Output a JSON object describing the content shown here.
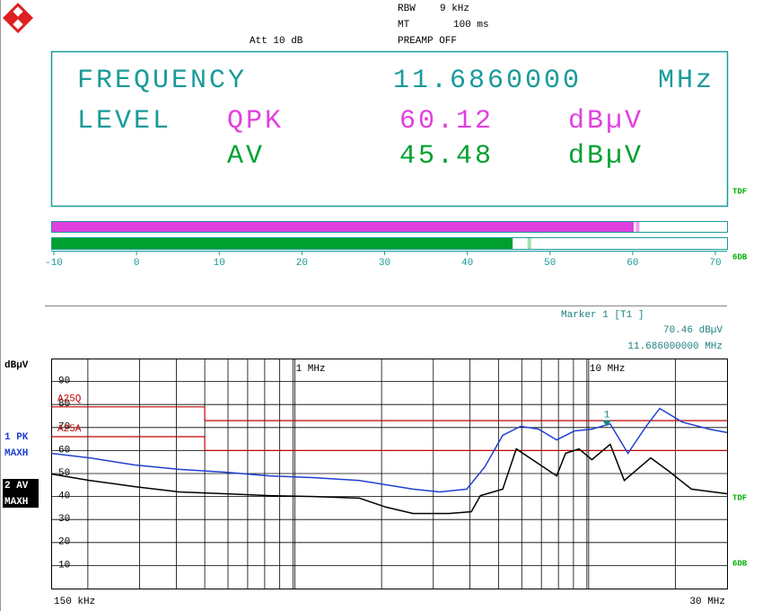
{
  "header": {
    "rbw_label": "RBW",
    "rbw": "9 kHz",
    "mt_label": "MT",
    "mt": "100 ms",
    "preamp": "PREAMP OFF",
    "att": "Att 10 dB"
  },
  "display": {
    "frequency_label": "FREQUENCY",
    "frequency": "11.6860000",
    "frequency_unit": "MHz",
    "level_label": "LEVEL",
    "qpk_label": "QPK",
    "qpk_value": "60.12",
    "qpk_unit": "dBµV",
    "av_label": "AV",
    "av_value": "45.48",
    "av_unit": "dBµV",
    "tdf": "TDF",
    "db": "6DB"
  },
  "bargraph": {
    "xlim": [
      -10,
      70
    ],
    "ticks": [
      -10,
      0,
      10,
      20,
      30,
      40,
      50,
      60,
      70
    ],
    "qpk": {
      "value": 60.12,
      "hold": 60.6,
      "color": "#e040e0"
    },
    "av": {
      "value": 45.48,
      "hold": 47.5,
      "color": "#00a030"
    }
  },
  "chart_data": {
    "type": "line",
    "log_x": true,
    "grid": true,
    "y_label": "dBµV",
    "xlim": [
      0.15,
      30
    ],
    "xlim_labels": [
      "150 kHz",
      "30 MHz"
    ],
    "xticks": [
      0.2,
      0.3,
      0.4,
      0.5,
      0.6,
      0.7,
      0.8,
      0.9,
      1,
      2,
      3,
      4,
      5,
      6,
      7,
      8,
      9,
      10,
      20
    ],
    "xtick_labels": [
      {
        "value": 1,
        "label": "1 MHz"
      },
      {
        "value": 10,
        "label": "10 MHz"
      }
    ],
    "ylim": [
      0,
      100
    ],
    "yticks": [
      10,
      20,
      30,
      40,
      50,
      60,
      70,
      80,
      90
    ],
    "series": [
      {
        "name": "1 PK",
        "mode": "MAXH",
        "color": "#2040d0",
        "x": [
          0.15,
          0.203,
          0.289,
          0.41,
          0.584,
          0.83,
          1.18,
          1.68,
          2.07,
          2.56,
          3.16,
          3.9,
          4.49,
          5.17,
          5.95,
          6.85,
          7.89,
          9.07,
          10.4,
          12.0,
          13.8,
          15.9,
          17.7,
          21.1,
          26.1,
          30
        ],
        "values": [
          58.8,
          56.8,
          53.7,
          51.8,
          50.6,
          49,
          48.2,
          47,
          45.1,
          43.2,
          42,
          43.2,
          52.9,
          66.6,
          70.5,
          69.3,
          64.6,
          68.5,
          69.3,
          71.6,
          58.8,
          70.5,
          78.3,
          72.4,
          69.3,
          67.8
        ]
      },
      {
        "name": "2 AV",
        "mode": "MAXH",
        "color": "#000000",
        "x": [
          0.15,
          0.203,
          0.289,
          0.41,
          0.584,
          0.83,
          1.18,
          1.68,
          2.07,
          2.56,
          3.39,
          4.04,
          4.34,
          5.17,
          5.75,
          6.39,
          7.1,
          7.89,
          8.46,
          9.4,
          10.4,
          12.0,
          13.4,
          16.5,
          19.0,
          22.7,
          30
        ],
        "values": [
          49.8,
          47,
          44.3,
          42,
          41.2,
          40.4,
          40,
          39.3,
          35.4,
          32.6,
          32.6,
          33.4,
          40.4,
          43.2,
          60.7,
          56.8,
          52.9,
          49,
          58.8,
          60.7,
          56,
          62.7,
          47,
          56.8,
          51,
          43.2,
          41.2
        ]
      }
    ],
    "limit_lines": [
      {
        "name": "A25Q",
        "color": "#c00000",
        "x": [
          0.15,
          0.5,
          0.5,
          30
        ],
        "values": [
          79,
          79,
          73,
          73
        ]
      },
      {
        "name": "A25A",
        "color": "#c00000",
        "x": [
          0.15,
          0.5,
          0.5,
          30
        ],
        "values": [
          66,
          66,
          60,
          60
        ]
      }
    ],
    "marker": {
      "title": "Marker 1 [T1 ]",
      "label": "1",
      "x": 11.686,
      "y": 70.46,
      "x_label": "11.686000000 MHz",
      "y_label": "70.46 dBµV",
      "color": "#208080"
    }
  }
}
